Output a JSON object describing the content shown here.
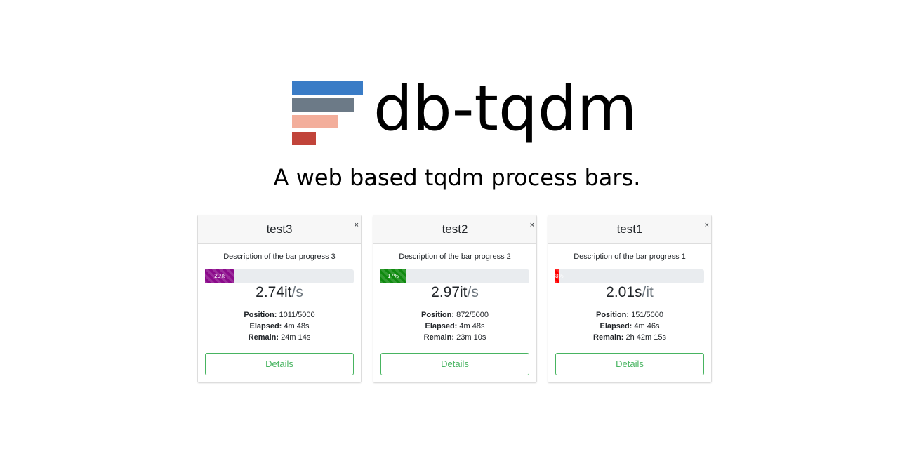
{
  "header": {
    "title": "db-tqdm",
    "subtitle": "A web based tqdm process bars.",
    "logo_colors": [
      "#3a7cc6",
      "#6c7a87",
      "#f3ae9b",
      "#c1443a"
    ]
  },
  "cards": [
    {
      "name": "test3",
      "close": "×",
      "description": "Description of the bar progress 3",
      "percent": 20,
      "percent_label": "20%",
      "bar_color": "#8b0a8b",
      "rate_value": "2.74it",
      "rate_unit": "/s",
      "position_label": "Position:",
      "position": "1011/5000",
      "elapsed_label": "Elapsed:",
      "elapsed": "4m 48s",
      "remain_label": "Remain:",
      "remain": "24m 14s",
      "button": "Details"
    },
    {
      "name": "test2",
      "close": "×",
      "description": "Description of the bar progress 2",
      "percent": 17,
      "percent_label": "17%",
      "bar_color": "#0f8a0f",
      "rate_value": "2.97it",
      "rate_unit": "/s",
      "position_label": "Position:",
      "position": "872/5000",
      "elapsed_label": "Elapsed:",
      "elapsed": "4m 48s",
      "remain_label": "Remain:",
      "remain": "23m 10s",
      "button": "Details"
    },
    {
      "name": "test1",
      "close": "×",
      "description": "Description of the bar progress 1",
      "percent": 3,
      "percent_label": "3%",
      "bar_color": "#ff0000",
      "rate_value": "2.01s",
      "rate_unit": "/it",
      "position_label": "Position:",
      "position": "151/5000",
      "elapsed_label": "Elapsed:",
      "elapsed": "4m 46s",
      "remain_label": "Remain:",
      "remain": "2h 42m 15s",
      "button": "Details"
    }
  ]
}
